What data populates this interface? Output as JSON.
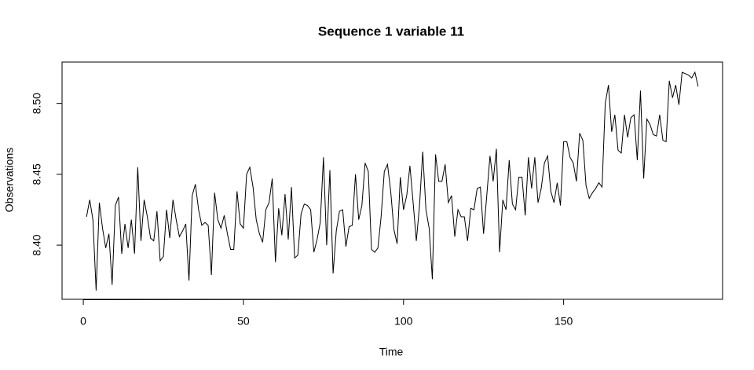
{
  "chart_data": {
    "type": "line",
    "title": "Sequence  1  variable  11",
    "x_label": "Time",
    "y_label": "Observations",
    "color": "#000000",
    "x": [
      1,
      2,
      3,
      4,
      5,
      6,
      7,
      8,
      9,
      10,
      11,
      12,
      13,
      14,
      15,
      16,
      17,
      18,
      19,
      20,
      21,
      22,
      23,
      24,
      25,
      26,
      27,
      28,
      29,
      30,
      31,
      32,
      33,
      34,
      35,
      36,
      37,
      38,
      39,
      40,
      41,
      42,
      43,
      44,
      45,
      46,
      47,
      48,
      49,
      50,
      51,
      52,
      53,
      54,
      55,
      56,
      57,
      58,
      59,
      60,
      61,
      62,
      63,
      64,
      65,
      66,
      67,
      68,
      69,
      70,
      71,
      72,
      73,
      74,
      75,
      76,
      77,
      78,
      79,
      80,
      81,
      82,
      83,
      84,
      85,
      86,
      87,
      88,
      89,
      90,
      91,
      92,
      93,
      94,
      95,
      96,
      97,
      98,
      99,
      100,
      101,
      102,
      103,
      104,
      105,
      106,
      107,
      108,
      109,
      110,
      111,
      112,
      113,
      114,
      115,
      116,
      117,
      118,
      119,
      120,
      121,
      122,
      123,
      124,
      125,
      126,
      127,
      128,
      129,
      130,
      131,
      132,
      133,
      134,
      135,
      136,
      137,
      138,
      139,
      140,
      141,
      142,
      143,
      144,
      145,
      146,
      147,
      148,
      149,
      150,
      151,
      152,
      153,
      154,
      155,
      156,
      157,
      158,
      159,
      160,
      161,
      162,
      163,
      164,
      165,
      166,
      167,
      168,
      169,
      170,
      171,
      172,
      173,
      174,
      175,
      176,
      177,
      178,
      179,
      180,
      181,
      182,
      183,
      184,
      185,
      186,
      187,
      188,
      189,
      190,
      191,
      192
    ],
    "values": [
      8.42,
      8.432,
      8.418,
      8.368,
      8.43,
      8.412,
      8.398,
      8.408,
      8.372,
      8.428,
      8.434,
      8.394,
      8.415,
      8.398,
      8.418,
      8.394,
      8.455,
      8.403,
      8.432,
      8.42,
      8.405,
      8.403,
      8.424,
      8.389,
      8.392,
      8.425,
      8.405,
      8.432,
      8.418,
      8.406,
      8.41,
      8.415,
      8.375,
      8.435,
      8.443,
      8.425,
      8.414,
      8.416,
      8.414,
      8.379,
      8.437,
      8.418,
      8.412,
      8.421,
      8.408,
      8.397,
      8.397,
      8.438,
      8.415,
      8.412,
      8.45,
      8.455,
      8.441,
      8.418,
      8.408,
      8.402,
      8.425,
      8.43,
      8.447,
      8.388,
      8.426,
      8.407,
      8.436,
      8.404,
      8.441,
      8.391,
      8.393,
      8.422,
      8.429,
      8.428,
      8.425,
      8.395,
      8.404,
      8.416,
      8.462,
      8.4,
      8.453,
      8.38,
      8.41,
      8.424,
      8.425,
      8.399,
      8.413,
      8.414,
      8.45,
      8.418,
      8.428,
      8.458,
      8.452,
      8.397,
      8.395,
      8.398,
      8.42,
      8.452,
      8.457,
      8.438,
      8.411,
      8.401,
      8.448,
      8.425,
      8.435,
      8.456,
      8.43,
      8.403,
      8.428,
      8.466,
      8.425,
      8.412,
      8.376,
      8.464,
      8.445,
      8.445,
      8.457,
      8.43,
      8.435,
      8.406,
      8.425,
      8.42,
      8.42,
      8.403,
      8.426,
      8.425,
      8.44,
      8.441,
      8.408,
      8.435,
      8.463,
      8.445,
      8.468,
      8.395,
      8.432,
      8.425,
      8.46,
      8.429,
      8.425,
      8.448,
      8.448,
      8.421,
      8.462,
      8.44,
      8.462,
      8.43,
      8.44,
      8.458,
      8.463,
      8.438,
      8.43,
      8.444,
      8.428,
      8.473,
      8.473,
      8.462,
      8.458,
      8.445,
      8.479,
      8.474,
      8.442,
      8.433,
      8.437,
      8.44,
      8.444,
      8.441,
      8.5,
      8.513,
      8.48,
      8.492,
      8.467,
      8.465,
      8.492,
      8.476,
      8.49,
      8.492,
      8.46,
      8.509,
      8.447,
      8.489,
      8.485,
      8.478,
      8.477,
      8.492,
      8.474,
      8.473,
      8.516,
      8.504,
      8.513,
      8.499,
      8.522,
      8.521,
      8.52,
      8.518,
      8.522,
      8.512
    ],
    "xlim": [
      -6.64,
      199.64
    ],
    "ylim": [
      8.3618,
      8.5292
    ],
    "xticks": [
      0,
      50,
      100,
      150
    ],
    "yticks": [
      {
        "value": 8.4,
        "label": "8.40"
      },
      8.45,
      {
        "value": 8.5,
        "label": "8.50"
      }
    ]
  }
}
